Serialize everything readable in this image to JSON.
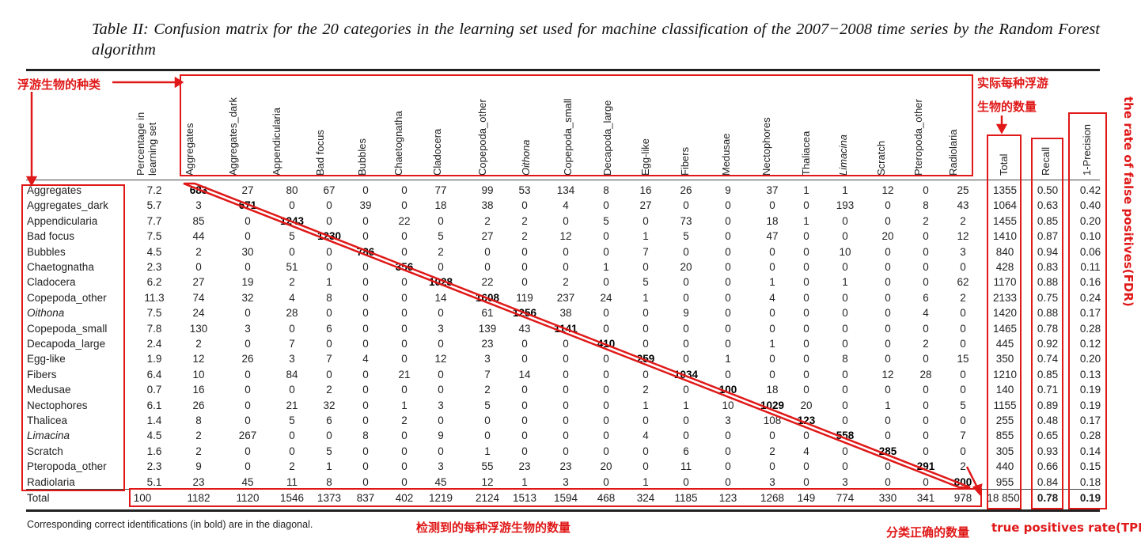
{
  "caption": "Table II: Confusion matrix for the 20 categories in the learning set used for machine classification of the 2007−2008 time series by the Random Forest algorithm",
  "headers": {
    "percentage": "Percentage in learning set",
    "categories": [
      "Aggregates",
      "Aggregates_dark",
      "Appendicularia",
      "Bad focus",
      "Bubbles",
      "Chaetognatha",
      "Cladocera",
      "Copepoda_other",
      "Oithona",
      "Copepoda_small",
      "Decapoda_large",
      "Egg-like",
      "Fibers",
      "Medusae",
      "Nectophores",
      "Thaliacea",
      "Limacina",
      "Scratch",
      "Pteropoda_other",
      "Radiolaria"
    ],
    "total": "Total",
    "recall": "Recall",
    "precision": "1-Precision"
  },
  "rows": [
    {
      "label": "Aggregates",
      "pct": "7.2",
      "values": [
        "683",
        "27",
        "80",
        "67",
        "0",
        "0",
        "77",
        "99",
        "53",
        "134",
        "8",
        "16",
        "26",
        "9",
        "37",
        "1",
        "1",
        "12",
        "0",
        "25"
      ],
      "total": "1355",
      "recall": "0.50",
      "precision": "0.42"
    },
    {
      "label": "Aggregates_dark",
      "pct": "5.7",
      "values": [
        "3",
        "671",
        "0",
        "0",
        "39",
        "0",
        "18",
        "38",
        "0",
        "4",
        "0",
        "27",
        "0",
        "0",
        "0",
        "0",
        "193",
        "0",
        "8",
        "43"
      ],
      "total": "1064",
      "recall": "0.63",
      "precision": "0.40"
    },
    {
      "label": "Appendicularia",
      "pct": "7.7",
      "values": [
        "85",
        "0",
        "1243",
        "0",
        "0",
        "22",
        "0",
        "2",
        "2",
        "0",
        "5",
        "0",
        "73",
        "0",
        "18",
        "1",
        "0",
        "0",
        "2",
        "2"
      ],
      "total": "1455",
      "recall": "0.85",
      "precision": "0.20"
    },
    {
      "label": "Bad focus",
      "pct": "7.5",
      "values": [
        "44",
        "0",
        "5",
        "1230",
        "0",
        "0",
        "5",
        "27",
        "2",
        "12",
        "0",
        "1",
        "5",
        "0",
        "47",
        "0",
        "0",
        "20",
        "0",
        "12"
      ],
      "total": "1410",
      "recall": "0.87",
      "precision": "0.10"
    },
    {
      "label": "Bubbles",
      "pct": "4.5",
      "values": [
        "2",
        "30",
        "0",
        "0",
        "786",
        "0",
        "2",
        "0",
        "0",
        "0",
        "0",
        "7",
        "0",
        "0",
        "0",
        "0",
        "10",
        "0",
        "0",
        "3"
      ],
      "total": "840",
      "recall": "0.94",
      "precision": "0.06"
    },
    {
      "label": "Chaetognatha",
      "pct": "2.3",
      "values": [
        "0",
        "0",
        "51",
        "0",
        "0",
        "356",
        "0",
        "0",
        "0",
        "0",
        "1",
        "0",
        "20",
        "0",
        "0",
        "0",
        "0",
        "0",
        "0",
        "0"
      ],
      "total": "428",
      "recall": "0.83",
      "precision": "0.11"
    },
    {
      "label": "Cladocera",
      "pct": "6.2",
      "values": [
        "27",
        "19",
        "2",
        "1",
        "0",
        "0",
        "1028",
        "22",
        "0",
        "2",
        "0",
        "5",
        "0",
        "0",
        "1",
        "0",
        "1",
        "0",
        "0",
        "62"
      ],
      "total": "1170",
      "recall": "0.88",
      "precision": "0.16"
    },
    {
      "label": "Copepoda_other",
      "pct": "11.3",
      "values": [
        "74",
        "32",
        "4",
        "8",
        "0",
        "0",
        "14",
        "1608",
        "119",
        "237",
        "24",
        "1",
        "0",
        "0",
        "4",
        "0",
        "0",
        "0",
        "6",
        "2"
      ],
      "total": "2133",
      "recall": "0.75",
      "precision": "0.24"
    },
    {
      "label": "Oithona",
      "pct": "7.5",
      "values": [
        "24",
        "0",
        "28",
        "0",
        "0",
        "0",
        "0",
        "61",
        "1256",
        "38",
        "0",
        "0",
        "9",
        "0",
        "0",
        "0",
        "0",
        "0",
        "4",
        "0"
      ],
      "total": "1420",
      "recall": "0.88",
      "precision": "0.17"
    },
    {
      "label": "Copepoda_small",
      "pct": "7.8",
      "values": [
        "130",
        "3",
        "0",
        "6",
        "0",
        "0",
        "3",
        "139",
        "43",
        "1141",
        "0",
        "0",
        "0",
        "0",
        "0",
        "0",
        "0",
        "0",
        "0",
        "0"
      ],
      "total": "1465",
      "recall": "0.78",
      "precision": "0.28"
    },
    {
      "label": "Decapoda_large",
      "pct": "2.4",
      "values": [
        "2",
        "0",
        "7",
        "0",
        "0",
        "0",
        "0",
        "23",
        "0",
        "0",
        "410",
        "0",
        "0",
        "0",
        "1",
        "0",
        "0",
        "0",
        "2",
        "0"
      ],
      "total": "445",
      "recall": "0.92",
      "precision": "0.12"
    },
    {
      "label": "Egg-like",
      "pct": "1.9",
      "values": [
        "12",
        "26",
        "3",
        "7",
        "4",
        "0",
        "12",
        "3",
        "0",
        "0",
        "0",
        "259",
        "0",
        "1",
        "0",
        "0",
        "8",
        "0",
        "0",
        "15"
      ],
      "total": "350",
      "recall": "0.74",
      "precision": "0.20"
    },
    {
      "label": "Fibers",
      "pct": "6.4",
      "values": [
        "10",
        "0",
        "84",
        "0",
        "0",
        "21",
        "0",
        "7",
        "14",
        "0",
        "0",
        "0",
        "1034",
        "0",
        "0",
        "0",
        "0",
        "12",
        "28",
        "0"
      ],
      "total": "1210",
      "recall": "0.85",
      "precision": "0.13"
    },
    {
      "label": "Medusae",
      "pct": "0.7",
      "values": [
        "16",
        "0",
        "0",
        "2",
        "0",
        "0",
        "0",
        "2",
        "0",
        "0",
        "0",
        "2",
        "0",
        "100",
        "18",
        "0",
        "0",
        "0",
        "0",
        "0"
      ],
      "total": "140",
      "recall": "0.71",
      "precision": "0.19"
    },
    {
      "label": "Nectophores",
      "pct": "6.1",
      "values": [
        "26",
        "0",
        "21",
        "32",
        "0",
        "1",
        "3",
        "5",
        "0",
        "0",
        "0",
        "1",
        "1",
        "10",
        "1029",
        "20",
        "0",
        "1",
        "0",
        "5"
      ],
      "total": "1155",
      "recall": "0.89",
      "precision": "0.19"
    },
    {
      "label": "Thalicea",
      "pct": "1.4",
      "values": [
        "8",
        "0",
        "5",
        "6",
        "0",
        "2",
        "0",
        "0",
        "0",
        "0",
        "0",
        "0",
        "0",
        "3",
        "108",
        "123",
        "0",
        "0",
        "0",
        "0"
      ],
      "total": "255",
      "recall": "0.48",
      "precision": "0.17"
    },
    {
      "label": "Limacina",
      "pct": "4.5",
      "values": [
        "2",
        "267",
        "0",
        "0",
        "8",
        "0",
        "9",
        "0",
        "0",
        "0",
        "0",
        "4",
        "0",
        "0",
        "0",
        "0",
        "558",
        "0",
        "0",
        "7"
      ],
      "total": "855",
      "recall": "0.65",
      "precision": "0.28"
    },
    {
      "label": "Scratch",
      "pct": "1.6",
      "values": [
        "2",
        "0",
        "0",
        "5",
        "0",
        "0",
        "0",
        "1",
        "0",
        "0",
        "0",
        "0",
        "6",
        "0",
        "2",
        "4",
        "0",
        "285",
        "0",
        "0"
      ],
      "total": "305",
      "recall": "0.93",
      "precision": "0.14"
    },
    {
      "label": "Pteropoda_other",
      "pct": "2.3",
      "values": [
        "9",
        "0",
        "2",
        "1",
        "0",
        "0",
        "3",
        "55",
        "23",
        "23",
        "20",
        "0",
        "11",
        "0",
        "0",
        "0",
        "0",
        "0",
        "291",
        "2"
      ],
      "total": "440",
      "recall": "0.66",
      "precision": "0.15"
    },
    {
      "label": "Radiolaria",
      "pct": "5.1",
      "values": [
        "23",
        "45",
        "11",
        "8",
        "0",
        "0",
        "45",
        "12",
        "1",
        "3",
        "0",
        "1",
        "0",
        "0",
        "3",
        "0",
        "3",
        "0",
        "0",
        "800"
      ],
      "total": "955",
      "recall": "0.84",
      "precision": "0.18"
    }
  ],
  "totals": {
    "label": "Total",
    "pct": "100",
    "values": [
      "1182",
      "1120",
      "1546",
      "1373",
      "837",
      "402",
      "1219",
      "2124",
      "1513",
      "1594",
      "468",
      "324",
      "1185",
      "123",
      "1268",
      "149",
      "774",
      "330",
      "341",
      "978"
    ],
    "total": "18 850",
    "recall": "0.78",
    "precision": "0.19"
  },
  "footnote": "Corresponding correct identifications (in bold) are in the diagonal.",
  "annotations": {
    "categories_label": "浮游生物的种类",
    "actual_count_line1": "实际每种浮游",
    "actual_count_line2": "生物的数量",
    "fdr": "the rate of false positives(FDR)",
    "detected_count": "检测到的每种浮游生物的数量",
    "correct_count": "分类正确的数量",
    "tpr": "true positives rate(TPR)",
    "color": "#e01818"
  }
}
